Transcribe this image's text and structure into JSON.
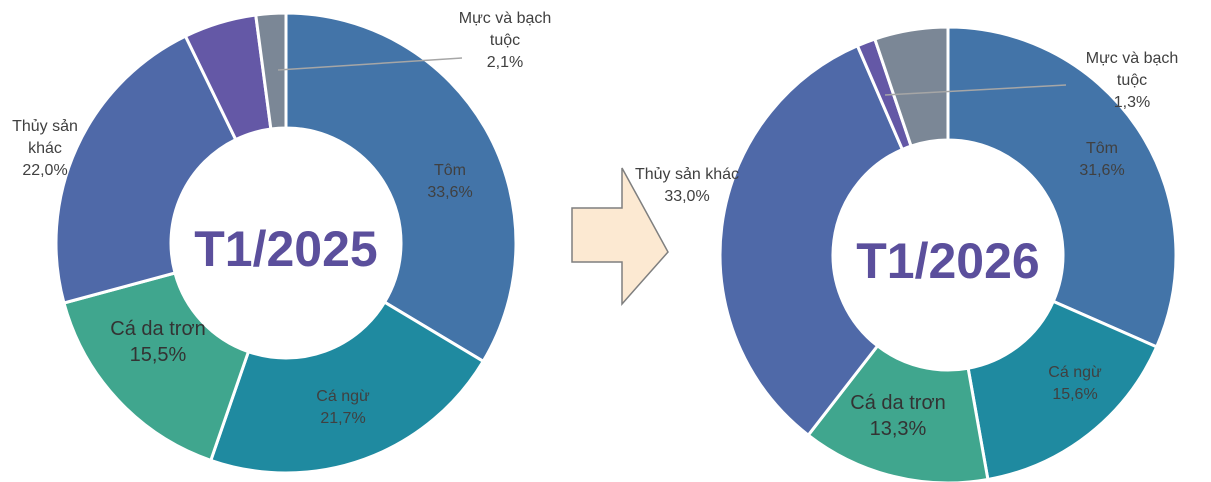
{
  "chart_data": [
    {
      "type": "donut",
      "center_label": "T1/2025",
      "categories": [
        "Tôm",
        "Cá ngừ",
        "Cá da trơn",
        "Thủy sản khác",
        null,
        "Mực và bạch tuộc"
      ],
      "values": [
        33.6,
        21.7,
        15.5,
        22.0,
        5.1,
        2.1
      ],
      "value_labels": [
        "33,6%",
        "21,7%",
        "15,5%",
        "22,0%",
        null,
        "2,1%"
      ],
      "colors": [
        "#4374a8",
        "#1f8aa0",
        "#40a68e",
        "#4f69a8",
        "#6458a6",
        "#7b8796"
      ]
    },
    {
      "type": "donut",
      "center_label": "T1/2026",
      "categories": [
        "Tôm",
        "Cá ngừ",
        "Cá da trơn",
        "Thủy sản khác",
        "Mực và bạch tuộc",
        null
      ],
      "values": [
        31.6,
        15.6,
        13.3,
        33.0,
        1.3,
        5.2
      ],
      "value_labels": [
        "31,6%",
        "15,6%",
        "13,3%",
        "33,0%",
        "1,3%",
        null
      ],
      "colors": [
        "#4374a8",
        "#1f8aa0",
        "#40a68e",
        "#4f69a8",
        "#6458a6",
        "#7b8796"
      ]
    }
  ]
}
